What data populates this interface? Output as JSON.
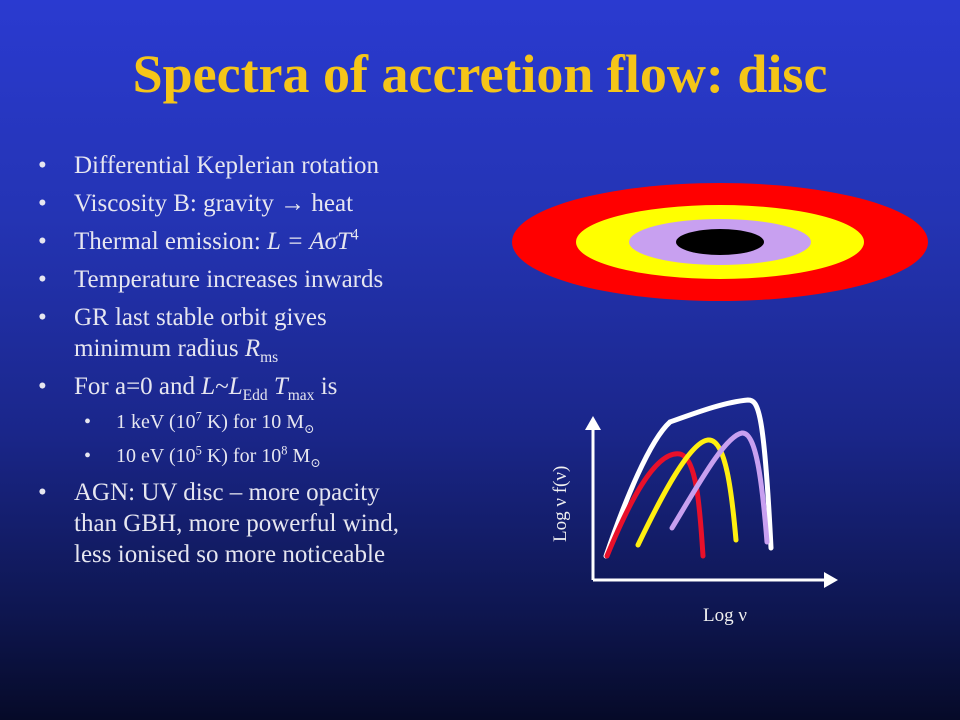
{
  "slide": {
    "title": "Spectra of accretion flow: disc",
    "bullets": [
      {
        "text": "Differential Keplerian rotation"
      },
      {
        "pre": "Viscosity B: gravity ",
        "arrow": "→",
        "post": " heat"
      },
      {
        "pre": "Thermal emission: ",
        "formula_italic": "L = AσT",
        "formula_sup": "4"
      },
      {
        "text": "Temperature increases inwards"
      },
      {
        "line1": "GR last stable orbit gives",
        "line2_pre": "minimum radius ",
        "line2_italic": "R",
        "line2_sub": "ms"
      },
      {
        "pre": "For a=0 and ",
        "L": "L",
        "tilde": "~",
        "L2": "L",
        "sub_edd": "Edd",
        "T": " T",
        "sub_max": "max",
        "post": " is"
      }
    ],
    "subbullets": [
      {
        "pre": "1 keV (10",
        "sup": "7",
        "mid": " K) for 10 M",
        "sub": "⊙"
      },
      {
        "pre": "10 eV (10",
        "sup": "5",
        "mid": " K) for 10",
        "sup2": "8",
        "mid2": " M",
        "sub": "⊙"
      }
    ],
    "last_bullet": {
      "line1": "AGN: UV disc – more opacity",
      "line2": "than GBH, more powerful wind,",
      "line3": "less ionised so more noticeable"
    },
    "bullet_symbol": "•",
    "plot": {
      "ylabel": "Log  ν f(ν)",
      "xlabel": "Log  ν"
    }
  },
  "colors": {
    "title": "#f5c518",
    "ring_outer": "#ff0000",
    "ring_middle": "#ffff00",
    "ring_inner": "#c8a0f0",
    "hole": "#000000",
    "curve_red": "#e8102a",
    "curve_yellow": "#ffef10",
    "curve_purple": "#c8a0f0",
    "curve_white": "#ffffff"
  }
}
